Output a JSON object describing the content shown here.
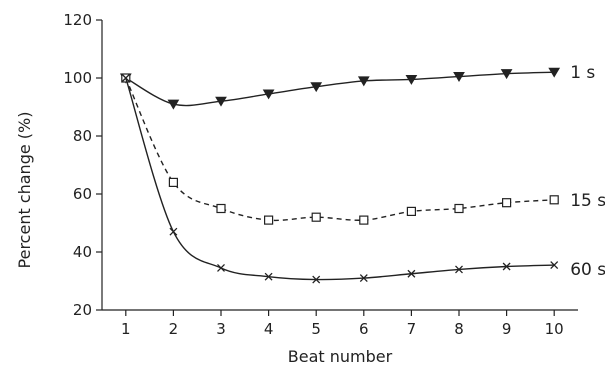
{
  "chart_data": {
    "type": "line",
    "title": "",
    "xlabel": "Beat number",
    "ylabel": "Percent change (%)",
    "xlim": [
      0.5,
      10.5
    ],
    "ylim": [
      20,
      120
    ],
    "x_ticks": [
      1,
      2,
      3,
      4,
      5,
      6,
      7,
      8,
      9,
      10
    ],
    "y_ticks": [
      20,
      40,
      60,
      80,
      100,
      120
    ],
    "grid": false,
    "legend": "none",
    "x": [
      1,
      2,
      3,
      4,
      5,
      6,
      7,
      8,
      9,
      10
    ],
    "series": [
      {
        "name": "1 s",
        "values": [
          100,
          91,
          92,
          94.5,
          97,
          99,
          99.5,
          100.5,
          101.5,
          102
        ],
        "marker": "filled-triangle-down",
        "line_style": "solid",
        "color": "#222222"
      },
      {
        "name": "15 s",
        "values": [
          100,
          64,
          55,
          51,
          52,
          51,
          54,
          55,
          57,
          58
        ],
        "marker": "open-square",
        "line_style": "dashed",
        "color": "#222222"
      },
      {
        "name": "60 s",
        "values": [
          100,
          47,
          34.5,
          31.5,
          30.5,
          31,
          32.5,
          34,
          35,
          35.5
        ],
        "marker": "x",
        "line_style": "solid",
        "color": "#222222"
      }
    ]
  }
}
